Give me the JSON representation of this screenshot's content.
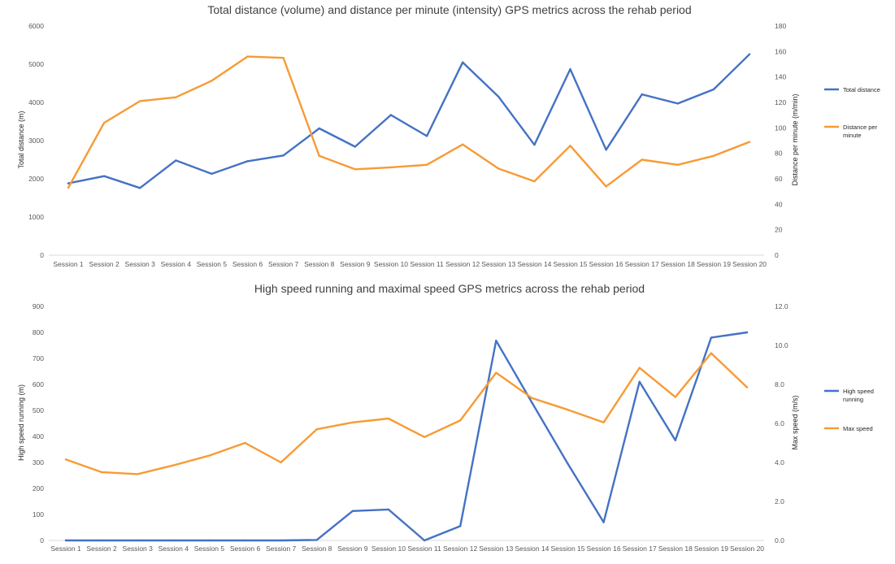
{
  "chart_data": [
    {
      "type": "line",
      "title": "Total distance (volume) and distance per minute (intensity) GPS metrics across the rehab period",
      "categories": [
        "Session 1",
        "Session 2",
        "Session 3",
        "Session 4",
        "Session 5",
        "Session 6",
        "Session 7",
        "Session 8",
        "Session 9",
        "Session 10",
        "Session 11",
        "Session 12",
        "Session 13",
        "Session 14",
        "Session 15",
        "Session 16",
        "Session 17",
        "Session 18",
        "Session 19",
        "Session 20"
      ],
      "ylabel": "Total distance (m)",
      "ylim": [
        0,
        6000
      ],
      "yticks": [
        0,
        1000,
        2000,
        3000,
        4000,
        5000,
        6000
      ],
      "y2label": "Distance per minute (m/min)",
      "y2lim": [
        0,
        180
      ],
      "y2ticks": [
        0,
        20,
        40,
        60,
        80,
        100,
        120,
        140,
        160,
        180
      ],
      "y2decimals": 0,
      "legend_position": "right",
      "series": [
        {
          "name": "Total distance",
          "axis": "left",
          "color": "#4472C4",
          "values": [
            1880,
            2070,
            1760,
            2480,
            2130,
            2460,
            2610,
            3320,
            2840,
            3670,
            3120,
            5050,
            4150,
            2890,
            4870,
            2760,
            4210,
            3970,
            4340,
            5260
          ]
        },
        {
          "name": "Distance per minute",
          "axis": "right",
          "color": "#F79B35",
          "values": [
            53,
            104,
            121,
            124,
            137,
            156,
            155,
            78,
            67.5,
            69,
            71,
            87,
            68,
            58,
            86,
            54,
            75,
            71,
            78,
            89
          ]
        }
      ]
    },
    {
      "type": "line",
      "title": "High speed running and maximal speed GPS metrics across the rehab period",
      "categories": [
        "Session 1",
        "Session 2",
        "Session 3",
        "Session 4",
        "Session 5",
        "Session 6",
        "Session 7",
        "Session 8",
        "Session 9",
        "Session 10",
        "Session 11",
        "Session 12",
        "Session 13",
        "Session 14",
        "Session 15",
        "Session 16",
        "Session 17",
        "Session 18",
        "Session 19",
        "Session 20"
      ],
      "ylabel": "High speed running (m)",
      "ylim": [
        0,
        900
      ],
      "yticks": [
        0,
        100,
        200,
        300,
        400,
        500,
        600,
        700,
        800,
        900
      ],
      "y2label": "Max speed (m/s)",
      "y2lim": [
        0,
        12
      ],
      "y2ticks": [
        0,
        2,
        4,
        6,
        8,
        10,
        12
      ],
      "y2decimals": 1,
      "legend_position": "right",
      "series": [
        {
          "name": "High speed running",
          "axis": "left",
          "color": "#4472C4",
          "values": [
            0,
            0,
            0,
            0,
            0,
            0,
            0,
            2,
            113,
            119,
            0,
            55,
            768,
            530,
            295,
            70,
            610,
            385,
            780,
            800
          ]
        },
        {
          "name": "Max speed",
          "axis": "right",
          "color": "#F79B35",
          "values": [
            4.15,
            3.5,
            3.4,
            3.85,
            4.35,
            5.0,
            4.0,
            5.7,
            6.05,
            6.25,
            5.3,
            6.15,
            8.6,
            7.3,
            6.7,
            6.05,
            8.85,
            7.35,
            9.6,
            7.85
          ]
        }
      ]
    }
  ]
}
